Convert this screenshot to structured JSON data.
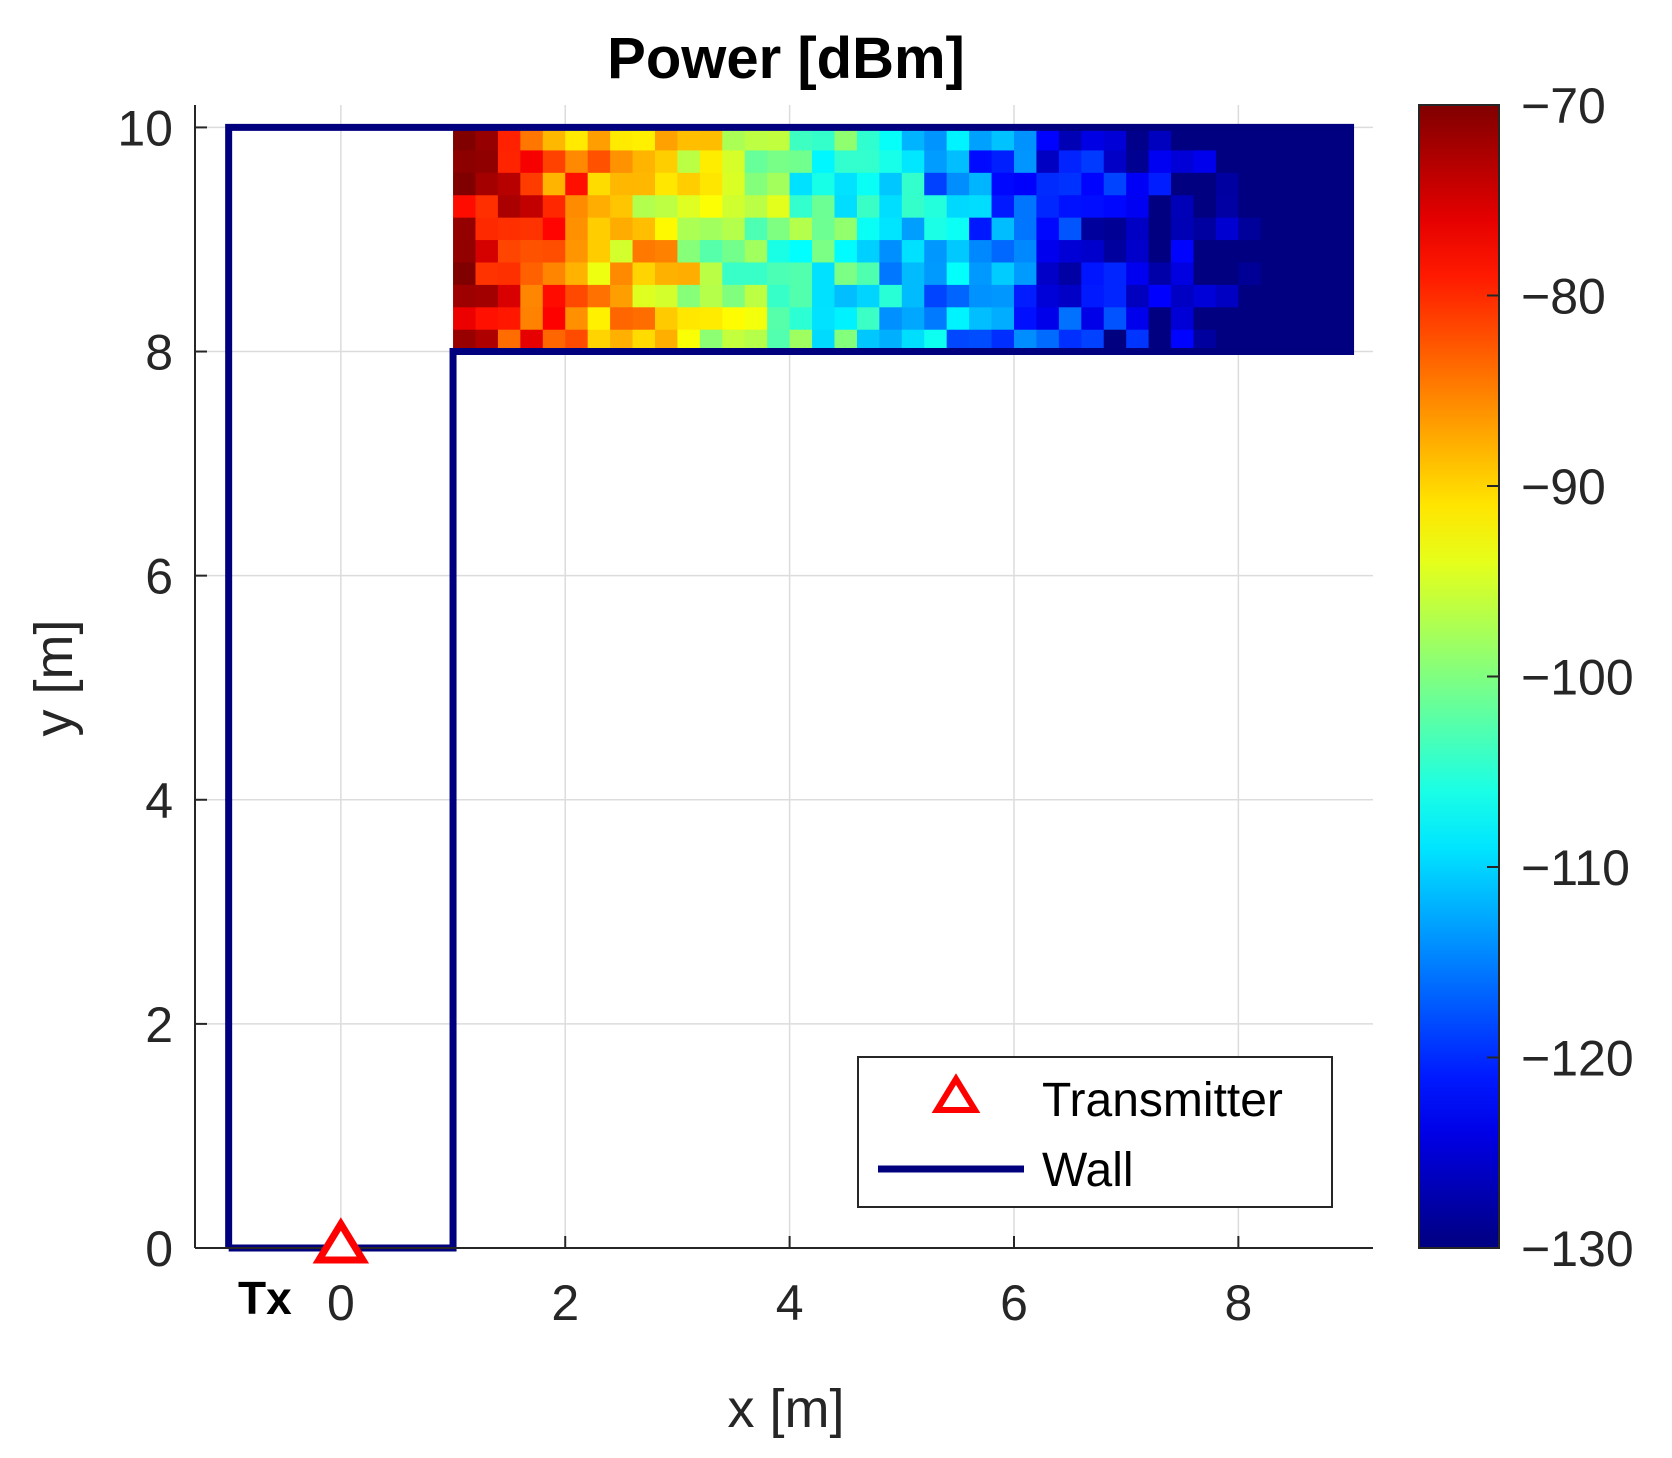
{
  "chart_data": {
    "type": "heatmap",
    "title": "Power [dBm]",
    "xlabel": "x [m]",
    "ylabel": "y [m]",
    "xlim": [
      -1.3,
      9.2
    ],
    "ylim": [
      0,
      10.2
    ],
    "xticks": [
      0,
      2,
      4,
      6,
      8
    ],
    "yticks": [
      0,
      2,
      4,
      6,
      8,
      10
    ],
    "grid": true,
    "colorbar": {
      "colormap": "jet",
      "clim": [
        -130,
        -70
      ],
      "ticks": [
        -70,
        -80,
        -90,
        -100,
        -110,
        -120,
        -130
      ],
      "tick_labels": [
        "−70",
        "−80",
        "−90",
        "−100",
        "−110",
        "−120",
        "−130"
      ]
    },
    "heatmap_region": {
      "x": [
        1.0,
        9.0
      ],
      "y": [
        8.0,
        10.0
      ],
      "cell_size": 0.2,
      "trend": "power decreases from about -72 dBm at x=1 m to about -130 dBm at x=9 m"
    },
    "walls": [
      {
        "name": "Wall",
        "color": "#00007f",
        "points": [
          [
            -1,
            0
          ],
          [
            -1,
            10
          ],
          [
            9,
            10
          ],
          [
            9,
            8
          ],
          [
            1,
            8
          ],
          [
            1,
            0
          ],
          [
            -1,
            0
          ]
        ]
      }
    ],
    "transmitter": {
      "name": "Transmitter",
      "label": "Tx",
      "x": 0,
      "y": 0,
      "color": "#ff0000",
      "marker": "triangle"
    },
    "legend": {
      "placement": "bottom-right",
      "entries": [
        {
          "label": "Transmitter",
          "marker": "triangle",
          "color": "#ff0000"
        },
        {
          "label": "Wall",
          "marker": "line",
          "color": "#00007f"
        }
      ]
    }
  }
}
